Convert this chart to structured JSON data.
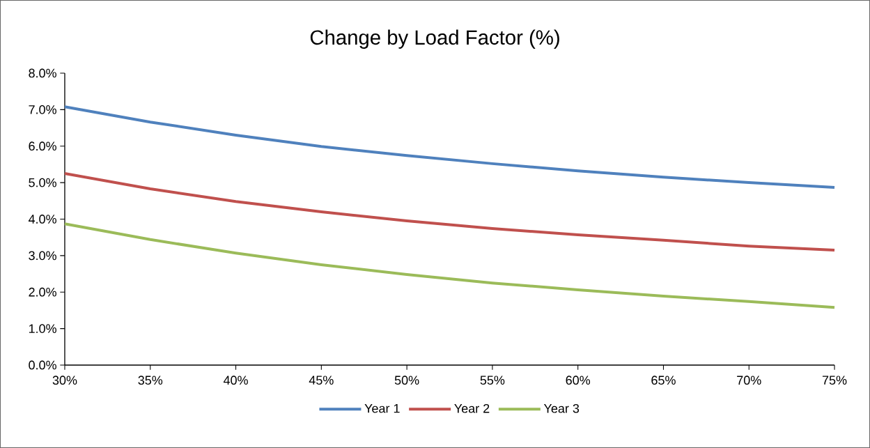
{
  "chart_data": {
    "type": "line",
    "title": "Change by Load Factor (%)",
    "x": [
      30,
      35,
      40,
      45,
      50,
      55,
      60,
      65,
      70,
      75
    ],
    "series": [
      {
        "name": "Year 1",
        "color": "#4f81bd",
        "values": [
          7.08,
          6.66,
          6.3,
          5.99,
          5.74,
          5.52,
          5.32,
          5.15,
          5.0,
          4.87
        ]
      },
      {
        "name": "Year 2",
        "color": "#c0504d",
        "values": [
          5.25,
          4.83,
          4.48,
          4.2,
          3.95,
          3.74,
          3.57,
          3.42,
          3.26,
          3.15
        ]
      },
      {
        "name": "Year 3",
        "color": "#9bbb59",
        "values": [
          3.87,
          3.44,
          3.07,
          2.75,
          2.48,
          2.25,
          2.06,
          1.89,
          1.74,
          1.58
        ]
      }
    ],
    "xlim": [
      30,
      75
    ],
    "xticks": [
      {
        "value": 30,
        "label": "30%"
      },
      {
        "value": 35,
        "label": "35%"
      },
      {
        "value": 40,
        "label": "40%"
      },
      {
        "value": 45,
        "label": "45%"
      },
      {
        "value": 50,
        "label": "50%"
      },
      {
        "value": 55,
        "label": "55%"
      },
      {
        "value": 60,
        "label": "60%"
      },
      {
        "value": 65,
        "label": "65%"
      },
      {
        "value": 70,
        "label": "70%"
      },
      {
        "value": 75,
        "label": "75%"
      }
    ],
    "ylim": [
      0,
      8
    ],
    "yticks": [
      {
        "value": 0,
        "label": "0.0%"
      },
      {
        "value": 1,
        "label": "1.0%"
      },
      {
        "value": 2,
        "label": "2.0%"
      },
      {
        "value": 3,
        "label": "3.0%"
      },
      {
        "value": 4,
        "label": "4.0%"
      },
      {
        "value": 5,
        "label": "5.0%"
      },
      {
        "value": 6,
        "label": "6.0%"
      },
      {
        "value": 7,
        "label": "7.0%"
      },
      {
        "value": 8,
        "label": "8.0%"
      }
    ],
    "grid": false,
    "legend": "bottom",
    "marker": "none",
    "line_style": "solid"
  }
}
